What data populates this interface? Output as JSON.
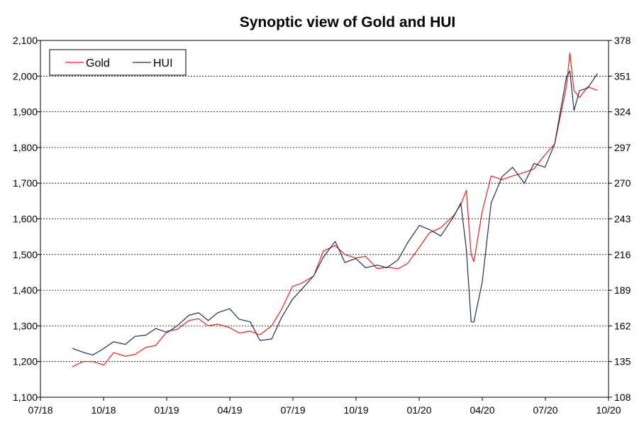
{
  "chart_data": {
    "type": "line",
    "title": "Synoptic view of Gold and HUI",
    "grid": "horizontal dashed",
    "legend_placement": "top-left",
    "x_axis": {
      "ticks": [
        "07/18",
        "10/18",
        "01/19",
        "04/19",
        "07/19",
        "10/19",
        "01/20",
        "04/20",
        "07/20",
        "10/20"
      ],
      "range": [
        "2018-07-01",
        "2020-10-01"
      ]
    },
    "y_left": {
      "ylim": [
        1100,
        2100
      ],
      "ticks": [
        "1,100",
        "1,200",
        "1,300",
        "1,400",
        "1,500",
        "1,600",
        "1,700",
        "1,800",
        "1,900",
        "2,000",
        "2,100"
      ]
    },
    "y_right": {
      "ylim": [
        108,
        378
      ],
      "ticks": [
        "108",
        "135",
        "162",
        "189",
        "216",
        "243",
        "270",
        "297",
        "324",
        "351",
        "378"
      ]
    },
    "series": [
      {
        "name": "Gold",
        "color": "#e8211c",
        "axis": "left",
        "x": [
          "2018-08-16",
          "2018-09-01",
          "2018-09-15",
          "2018-10-01",
          "2018-10-15",
          "2018-11-01",
          "2018-11-15",
          "2018-12-01",
          "2018-12-15",
          "2019-01-01",
          "2019-01-15",
          "2019-02-01",
          "2019-02-15",
          "2019-03-01",
          "2019-03-15",
          "2019-04-01",
          "2019-04-15",
          "2019-05-01",
          "2019-05-15",
          "2019-06-01",
          "2019-06-15",
          "2019-07-01",
          "2019-07-15",
          "2019-08-01",
          "2019-08-15",
          "2019-09-01",
          "2019-09-15",
          "2019-10-01",
          "2019-10-15",
          "2019-11-01",
          "2019-11-15",
          "2019-12-01",
          "2019-12-15",
          "2020-01-01",
          "2020-01-15",
          "2020-02-01",
          "2020-02-20",
          "2020-03-01",
          "2020-03-09",
          "2020-03-16",
          "2020-03-20",
          "2020-04-01",
          "2020-04-14",
          "2020-04-30",
          "2020-05-15",
          "2020-06-01",
          "2020-06-15",
          "2020-07-01",
          "2020-07-15",
          "2020-08-01",
          "2020-08-06",
          "2020-08-12",
          "2020-08-20",
          "2020-09-01",
          "2020-09-15"
        ],
        "values": [
          1185,
          1200,
          1200,
          1190,
          1225,
          1215,
          1220,
          1240,
          1245,
          1285,
          1290,
          1315,
          1320,
          1300,
          1305,
          1295,
          1280,
          1285,
          1275,
          1300,
          1345,
          1410,
          1420,
          1440,
          1510,
          1525,
          1500,
          1490,
          1495,
          1460,
          1465,
          1460,
          1475,
          1520,
          1560,
          1575,
          1610,
          1640,
          1680,
          1500,
          1480,
          1620,
          1720,
          1710,
          1720,
          1730,
          1740,
          1780,
          1810,
          1970,
          2065,
          1960,
          1940,
          1970,
          1960
        ]
      },
      {
        "name": "HUI",
        "color": "#1f2e5c",
        "axis": "right",
        "x": [
          "2018-08-16",
          "2018-09-01",
          "2018-09-15",
          "2018-10-01",
          "2018-10-15",
          "2018-11-01",
          "2018-11-15",
          "2018-12-01",
          "2018-12-15",
          "2019-01-01",
          "2019-01-15",
          "2019-02-01",
          "2019-02-15",
          "2019-03-01",
          "2019-03-15",
          "2019-04-01",
          "2019-04-15",
          "2019-05-01",
          "2019-05-15",
          "2019-06-01",
          "2019-06-15",
          "2019-07-01",
          "2019-07-15",
          "2019-08-01",
          "2019-08-15",
          "2019-09-01",
          "2019-09-15",
          "2019-10-01",
          "2019-10-15",
          "2019-11-01",
          "2019-11-15",
          "2019-12-01",
          "2019-12-15",
          "2020-01-01",
          "2020-01-15",
          "2020-02-01",
          "2020-02-20",
          "2020-03-01",
          "2020-03-09",
          "2020-03-16",
          "2020-03-20",
          "2020-04-01",
          "2020-04-14",
          "2020-04-30",
          "2020-05-15",
          "2020-06-01",
          "2020-06-15",
          "2020-07-01",
          "2020-07-15",
          "2020-08-01",
          "2020-08-06",
          "2020-08-12",
          "2020-08-20",
          "2020-09-01",
          "2020-09-15"
        ],
        "values": [
          145,
          142,
          140,
          145,
          150,
          148,
          154,
          155,
          160,
          157,
          162,
          170,
          172,
          166,
          172,
          175,
          167,
          165,
          151,
          152,
          168,
          182,
          190,
          200,
          214,
          226,
          210,
          213,
          206,
          208,
          206,
          212,
          225,
          238,
          235,
          230,
          245,
          255,
          220,
          165,
          165,
          195,
          255,
          275,
          282,
          270,
          285,
          282,
          300,
          350,
          355,
          325,
          340,
          342,
          353
        ]
      }
    ]
  }
}
